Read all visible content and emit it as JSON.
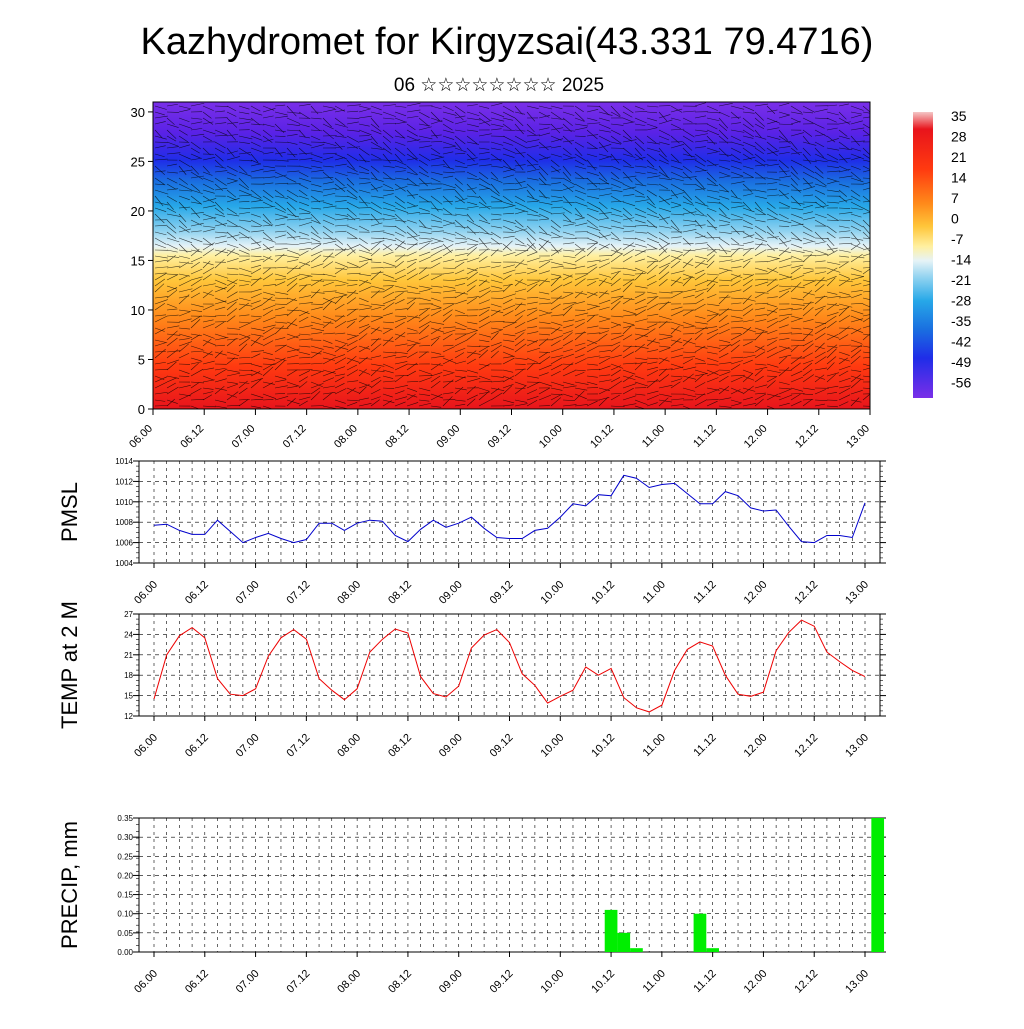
{
  "header": {
    "title": "Kazhydromet for Kirgyzsai(43.331 79.4716)",
    "subtitle": "06 ☆☆☆☆☆☆☆☆ 2025"
  },
  "time_labels": [
    "06.00",
    "06.12",
    "07.00",
    "07.12",
    "08.00",
    "08.12",
    "09.00",
    "09.12",
    "10.00",
    "10.12",
    "11.00",
    "11.12",
    "12.00",
    "12.12",
    "13.00"
  ],
  "chart_data": [
    {
      "type": "heatmap",
      "ylim": [
        0,
        31
      ],
      "yticks": [
        0,
        5,
        10,
        15,
        20,
        25,
        30
      ],
      "colorbar": {
        "labels": [
          35,
          28,
          21,
          14,
          7,
          0,
          -7,
          -14,
          -21,
          -28,
          -35,
          -42,
          -49,
          -56
        ],
        "stops": [
          "#f4c6c6",
          "#e8141c",
          "#ff4f00",
          "#ff9a1a",
          "#ffd34d",
          "#fff5a6",
          "#dceef5",
          "#2fb6ea",
          "#1a7fe0",
          "#1f2de8",
          "#5a22e6",
          "#7a2fe8"
        ]
      },
      "temperature_profile": [
        {
          "level": 0,
          "value": 28
        },
        {
          "level": 5,
          "value": 20
        },
        {
          "level": 10,
          "value": 10
        },
        {
          "level": 15,
          "value": 0
        },
        {
          "level": 17,
          "value": -7
        },
        {
          "level": 19,
          "value": -20
        },
        {
          "level": 22,
          "value": -35
        },
        {
          "level": 25,
          "value": -49
        },
        {
          "level": 31,
          "value": -56
        }
      ]
    },
    {
      "type": "line",
      "ylabel": "PMSL",
      "ylim": [
        1004,
        1014
      ],
      "yticks": [
        1004,
        1006,
        1008,
        1010,
        1012,
        1014
      ],
      "color": "#0000cc",
      "values": [
        1007.7,
        1007.8,
        1007.2,
        1006.8,
        1006.8,
        1008.2,
        1007.1,
        1006.0,
        1006.5,
        1006.9,
        1006.4,
        1006.0,
        1006.3,
        1007.9,
        1007.9,
        1007.2,
        1007.9,
        1008.2,
        1008.1,
        1006.7,
        1006.1,
        1007.3,
        1008.2,
        1007.5,
        1007.9,
        1008.5,
        1007.4,
        1006.5,
        1006.4,
        1006.4,
        1007.2,
        1007.4,
        1008.5,
        1009.8,
        1009.6,
        1010.7,
        1010.6,
        1012.6,
        1012.3,
        1011.4,
        1011.7,
        1011.8,
        1010.8,
        1009.8,
        1009.8,
        1011.0,
        1010.6,
        1009.4,
        1009.1,
        1009.2,
        1007.6,
        1006.1,
        1006.0,
        1006.7,
        1006.7,
        1006.5,
        1009.9
      ]
    },
    {
      "type": "line",
      "ylabel": "TEMP at 2 M",
      "ylim": [
        12,
        27
      ],
      "yticks": [
        12,
        15,
        18,
        21,
        24,
        27
      ],
      "color": "#ee0000",
      "values": [
        14.5,
        21.0,
        23.8,
        25.0,
        23.5,
        17.5,
        15.2,
        15.0,
        16.0,
        20.8,
        23.5,
        24.7,
        23.3,
        17.5,
        15.8,
        14.4,
        16.0,
        21.4,
        23.3,
        24.8,
        24.2,
        17.8,
        15.3,
        14.8,
        16.4,
        22.0,
        23.9,
        24.7,
        22.8,
        18.2,
        16.5,
        13.9,
        14.9,
        15.8,
        19.2,
        18.0,
        19.0,
        14.7,
        13.2,
        12.6,
        13.6,
        18.7,
        21.8,
        22.9,
        22.3,
        18.0,
        15.2,
        14.9,
        15.5,
        21.6,
        24.3,
        26.1,
        25.2,
        21.4,
        20.0,
        18.7,
        17.8
      ]
    },
    {
      "type": "bar",
      "ylabel": "PRECIP, mm",
      "ylim": [
        0,
        0.35
      ],
      "yticks": [
        "0.00",
        "0.05",
        "0.10",
        "0.15",
        "0.20",
        "0.25",
        "0.30",
        "0.35"
      ],
      "color": "#00ee00",
      "values": [
        {
          "x": 36,
          "value": 0.11
        },
        {
          "x": 37,
          "value": 0.05
        },
        {
          "x": 38,
          "value": 0.01
        },
        {
          "x": 43,
          "value": 0.1
        },
        {
          "x": 44,
          "value": 0.01
        },
        {
          "x": 57,
          "value": 0.35
        }
      ]
    }
  ]
}
